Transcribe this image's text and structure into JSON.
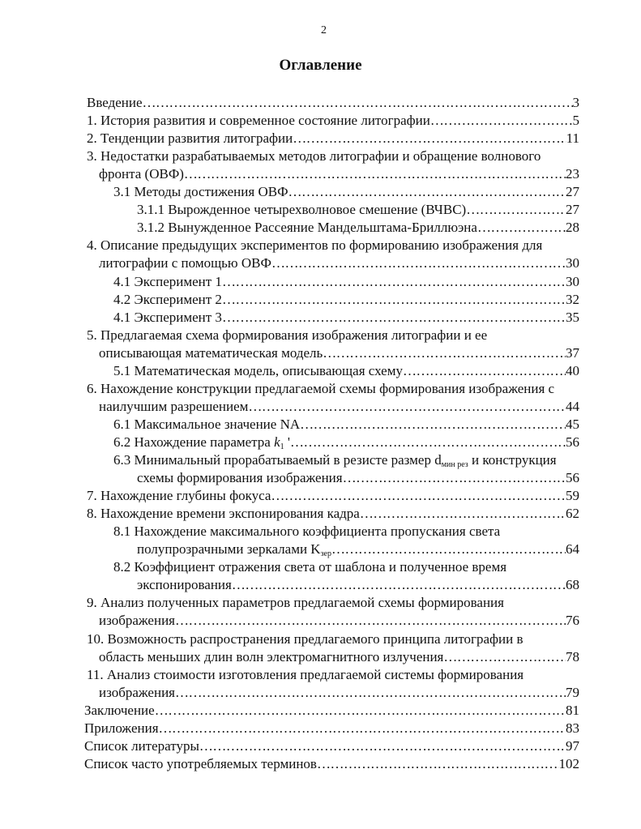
{
  "page_number": "2",
  "title": "Оглавление",
  "lines": [
    {
      "text": "Введение",
      "page": "3"
    },
    {
      "text": "1. История развития и современное состояние литографии",
      "page": "5"
    },
    {
      "text": "2. Тенденции развития литографии",
      "page": "11"
    },
    {
      "text": "3. Недостатки разрабатываемых методов литографии и обращение волнового"
    },
    {
      "text": "фронта (ОВФ)",
      "page": "23"
    },
    {
      "text": "3.1 Методы достижения ОВФ",
      "page": "27"
    },
    {
      "text": "3.1.1 Вырожденное четырехволновое смешение (ВЧВС)",
      "page": "27"
    },
    {
      "text": "3.1.2 Вынужденное Рассеяние Мандельштама-Бриллюэна",
      "page": "28"
    },
    {
      "text": "4. Описание предыдущих экспериментов по формированию изображения для"
    },
    {
      "text": "литографии с помощью ОВФ",
      "page": "30"
    },
    {
      "text": "4.1 Эксперимент 1",
      "page": "30"
    },
    {
      "text": "4.2 Эксперимент 2",
      "page": "32"
    },
    {
      "text": "4.1 Эксперимент 3",
      "page": "35"
    },
    {
      "text": "5. Предлагаемая схема формирования изображения литографии и ее"
    },
    {
      "text": "описывающая математическая модель",
      "page": "37"
    },
    {
      "text": "5.1 Математическая модель, описывающая схему",
      "page": "40"
    },
    {
      "text": "6. Нахождение конструкции предлагаемой схемы формирования изображения с"
    },
    {
      "text": "наилучшим разрешением",
      "page": "44"
    },
    {
      "text": "6.1 Максимальное значение NA",
      "page": "45"
    },
    {
      "text": "6.2 Нахождение параметра ",
      "italic": "k",
      "sub": "1",
      "after": " '",
      "page": "56"
    },
    {
      "text": "6.3 Минимальный прорабатываемый в резисте размер d",
      "sub": "мин рез",
      "after": " и конструкция"
    },
    {
      "text": "схемы формирования изображения",
      "page": "56"
    },
    {
      "text": "7. Нахождение глубины фокуса",
      "page": "59"
    },
    {
      "text": "8. Нахождение времени экспонирования кадра",
      "page": "62"
    },
    {
      "text": "8.1 Нахождение максимального коэффициента пропускания света"
    },
    {
      "text": "полупрозрачными зеркалами K",
      "sub": "зер",
      "page": "64"
    },
    {
      "text": "8.2 Коэффициент отражения света от шаблона и полученное время"
    },
    {
      "text": "экспонирования",
      "page": "68"
    },
    {
      "text": "9. Анализ полученных параметров предлагаемой схемы формирования"
    },
    {
      "text": "изображения",
      "page": "76"
    },
    {
      "text": "10. Возможность распространения предлагаемого принципа литографии в"
    },
    {
      "text": "область меньших длин волн электромагнитного излучения",
      "page": "78"
    },
    {
      "text": "11. Анализ стоимости изготовления предлагаемой системы формирования"
    },
    {
      "text": "изображения",
      "page": "79"
    },
    {
      "text": "Заключение",
      "page": "81"
    },
    {
      "text": "Приложения",
      "page": "83"
    },
    {
      "text": "Список литературы",
      "page": "97"
    },
    {
      "text": "Список часто употребляемых терминов",
      "page": "102"
    }
  ]
}
